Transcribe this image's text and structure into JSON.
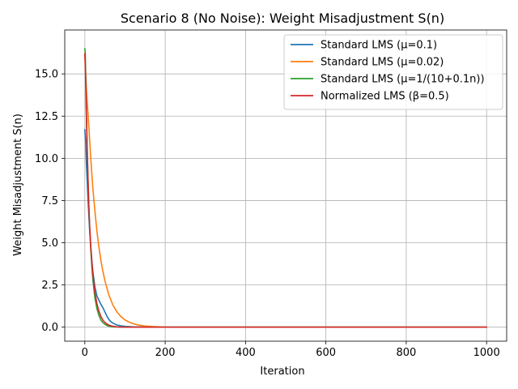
{
  "chart_data": {
    "type": "line",
    "title": "Scenario 8 (No Noise): Weight Misadjustment S(n)",
    "xlabel": "Iteration",
    "ylabel": "Weight Misadjustment S(n)",
    "xlim": [
      -50,
      1050
    ],
    "ylim": [
      -0.83,
      17.6
    ],
    "xticks": [
      0,
      200,
      400,
      600,
      800,
      1000
    ],
    "yticks": [
      0.0,
      2.5,
      5.0,
      7.5,
      10.0,
      12.5,
      15.0
    ],
    "xtick_labels": [
      "0",
      "200",
      "400",
      "600",
      "800",
      "1000"
    ],
    "ytick_labels": [
      "0.0",
      "2.5",
      "5.0",
      "7.5",
      "10.0",
      "12.5",
      "15.0"
    ],
    "grid": true,
    "legend_position": "top-right",
    "series": [
      {
        "name": "Standard LMS (μ=0.1)",
        "color": "#1f77b4",
        "x": [
          0,
          2,
          4,
          6,
          8,
          10,
          12,
          15,
          18,
          20,
          25,
          30,
          35,
          40,
          45,
          50,
          55,
          60,
          65,
          70,
          75,
          80,
          90,
          100,
          120,
          150,
          200,
          300,
          400,
          500,
          600,
          700,
          800,
          900,
          1000
        ],
        "y": [
          11.7,
          11.0,
          9.6,
          8.6,
          7.5,
          6.6,
          5.7,
          4.7,
          3.8,
          3.3,
          2.4,
          1.85,
          1.6,
          1.35,
          1.15,
          0.9,
          0.65,
          0.45,
          0.32,
          0.24,
          0.18,
          0.13,
          0.08,
          0.05,
          0.02,
          0.01,
          0.0,
          0.0,
          0.0,
          0.0,
          0.0,
          0.0,
          0.0,
          0.0,
          0.0
        ]
      },
      {
        "name": "Standard LMS (μ=0.02)",
        "color": "#ff7f0e",
        "x": [
          0,
          2,
          5,
          8,
          10,
          15,
          20,
          25,
          30,
          35,
          40,
          45,
          50,
          60,
          70,
          80,
          90,
          100,
          110,
          120,
          130,
          150,
          170,
          200,
          250,
          300,
          400,
          500,
          600,
          700,
          800,
          900,
          1000
        ],
        "y": [
          16.1,
          15.0,
          13.7,
          12.6,
          11.9,
          9.9,
          8.2,
          6.9,
          5.7,
          4.75,
          3.95,
          3.3,
          2.75,
          1.9,
          1.3,
          0.9,
          0.62,
          0.43,
          0.3,
          0.21,
          0.14,
          0.07,
          0.035,
          0.01,
          0.0,
          0.0,
          0.0,
          0.0,
          0.0,
          0.0,
          0.0,
          0.0,
          0.0
        ]
      },
      {
        "name": "Standard LMS (μ=1/(10+0.1n))",
        "color": "#2ca02c",
        "x": [
          0,
          1,
          2,
          4,
          6,
          8,
          10,
          12,
          15,
          18,
          20,
          25,
          30,
          35,
          40,
          45,
          50,
          55,
          60,
          70,
          80,
          90,
          100,
          150,
          200,
          300,
          400,
          500,
          600,
          700,
          800,
          900,
          1000
        ],
        "y": [
          16.5,
          16.3,
          15.1,
          12.6,
          10.5,
          8.7,
          7.1,
          5.9,
          4.5,
          3.4,
          2.8,
          1.75,
          1.1,
          0.7,
          0.42,
          0.27,
          0.17,
          0.1,
          0.06,
          0.02,
          0.01,
          0.0,
          0.0,
          0.0,
          0.0,
          0.0,
          0.0,
          0.0,
          0.0,
          0.0,
          0.0,
          0.0,
          0.0
        ]
      },
      {
        "name": "Normalized LMS (β=0.5)",
        "color": "#d62728",
        "x": [
          0,
          1,
          2,
          4,
          6,
          8,
          10,
          12,
          15,
          18,
          20,
          25,
          30,
          35,
          40,
          45,
          50,
          55,
          60,
          70,
          80,
          90,
          100,
          150,
          200,
          300,
          400,
          500,
          600,
          700,
          800,
          900,
          1000
        ],
        "y": [
          16.2,
          15.7,
          14.7,
          12.4,
          10.4,
          8.7,
          7.2,
          6.0,
          4.7,
          3.7,
          3.1,
          2.05,
          1.4,
          0.95,
          0.63,
          0.42,
          0.28,
          0.19,
          0.12,
          0.05,
          0.02,
          0.01,
          0.0,
          0.0,
          0.0,
          0.0,
          0.0,
          0.0,
          0.0,
          0.0,
          0.0,
          0.0,
          0.0
        ]
      }
    ]
  }
}
